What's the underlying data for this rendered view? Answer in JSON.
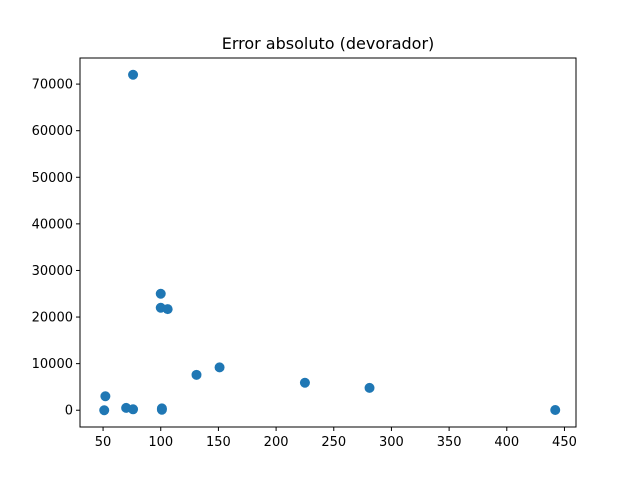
{
  "chart_data": {
    "type": "scatter",
    "title": "Error absoluto (devorador)",
    "xlabel": "",
    "ylabel": "",
    "xlim": [
      30,
      460
    ],
    "ylim": [
      -3600,
      75600
    ],
    "xticks": [
      50,
      100,
      150,
      200,
      250,
      300,
      350,
      400,
      450
    ],
    "yticks": [
      0,
      10000,
      20000,
      30000,
      40000,
      50000,
      60000,
      70000
    ],
    "grid": false,
    "marker_color": "#1f77b4",
    "points": [
      {
        "x": 51,
        "y": 0
      },
      {
        "x": 52,
        "y": 3000
      },
      {
        "x": 70,
        "y": 500
      },
      {
        "x": 76,
        "y": 200
      },
      {
        "x": 76,
        "y": 72000
      },
      {
        "x": 100,
        "y": 25000
      },
      {
        "x": 100,
        "y": 22000
      },
      {
        "x": 101,
        "y": 400
      },
      {
        "x": 101,
        "y": 100
      },
      {
        "x": 106,
        "y": 21700
      },
      {
        "x": 131,
        "y": 7600
      },
      {
        "x": 151,
        "y": 9200
      },
      {
        "x": 225,
        "y": 5900
      },
      {
        "x": 281,
        "y": 4800
      },
      {
        "x": 442,
        "y": 50
      }
    ]
  }
}
